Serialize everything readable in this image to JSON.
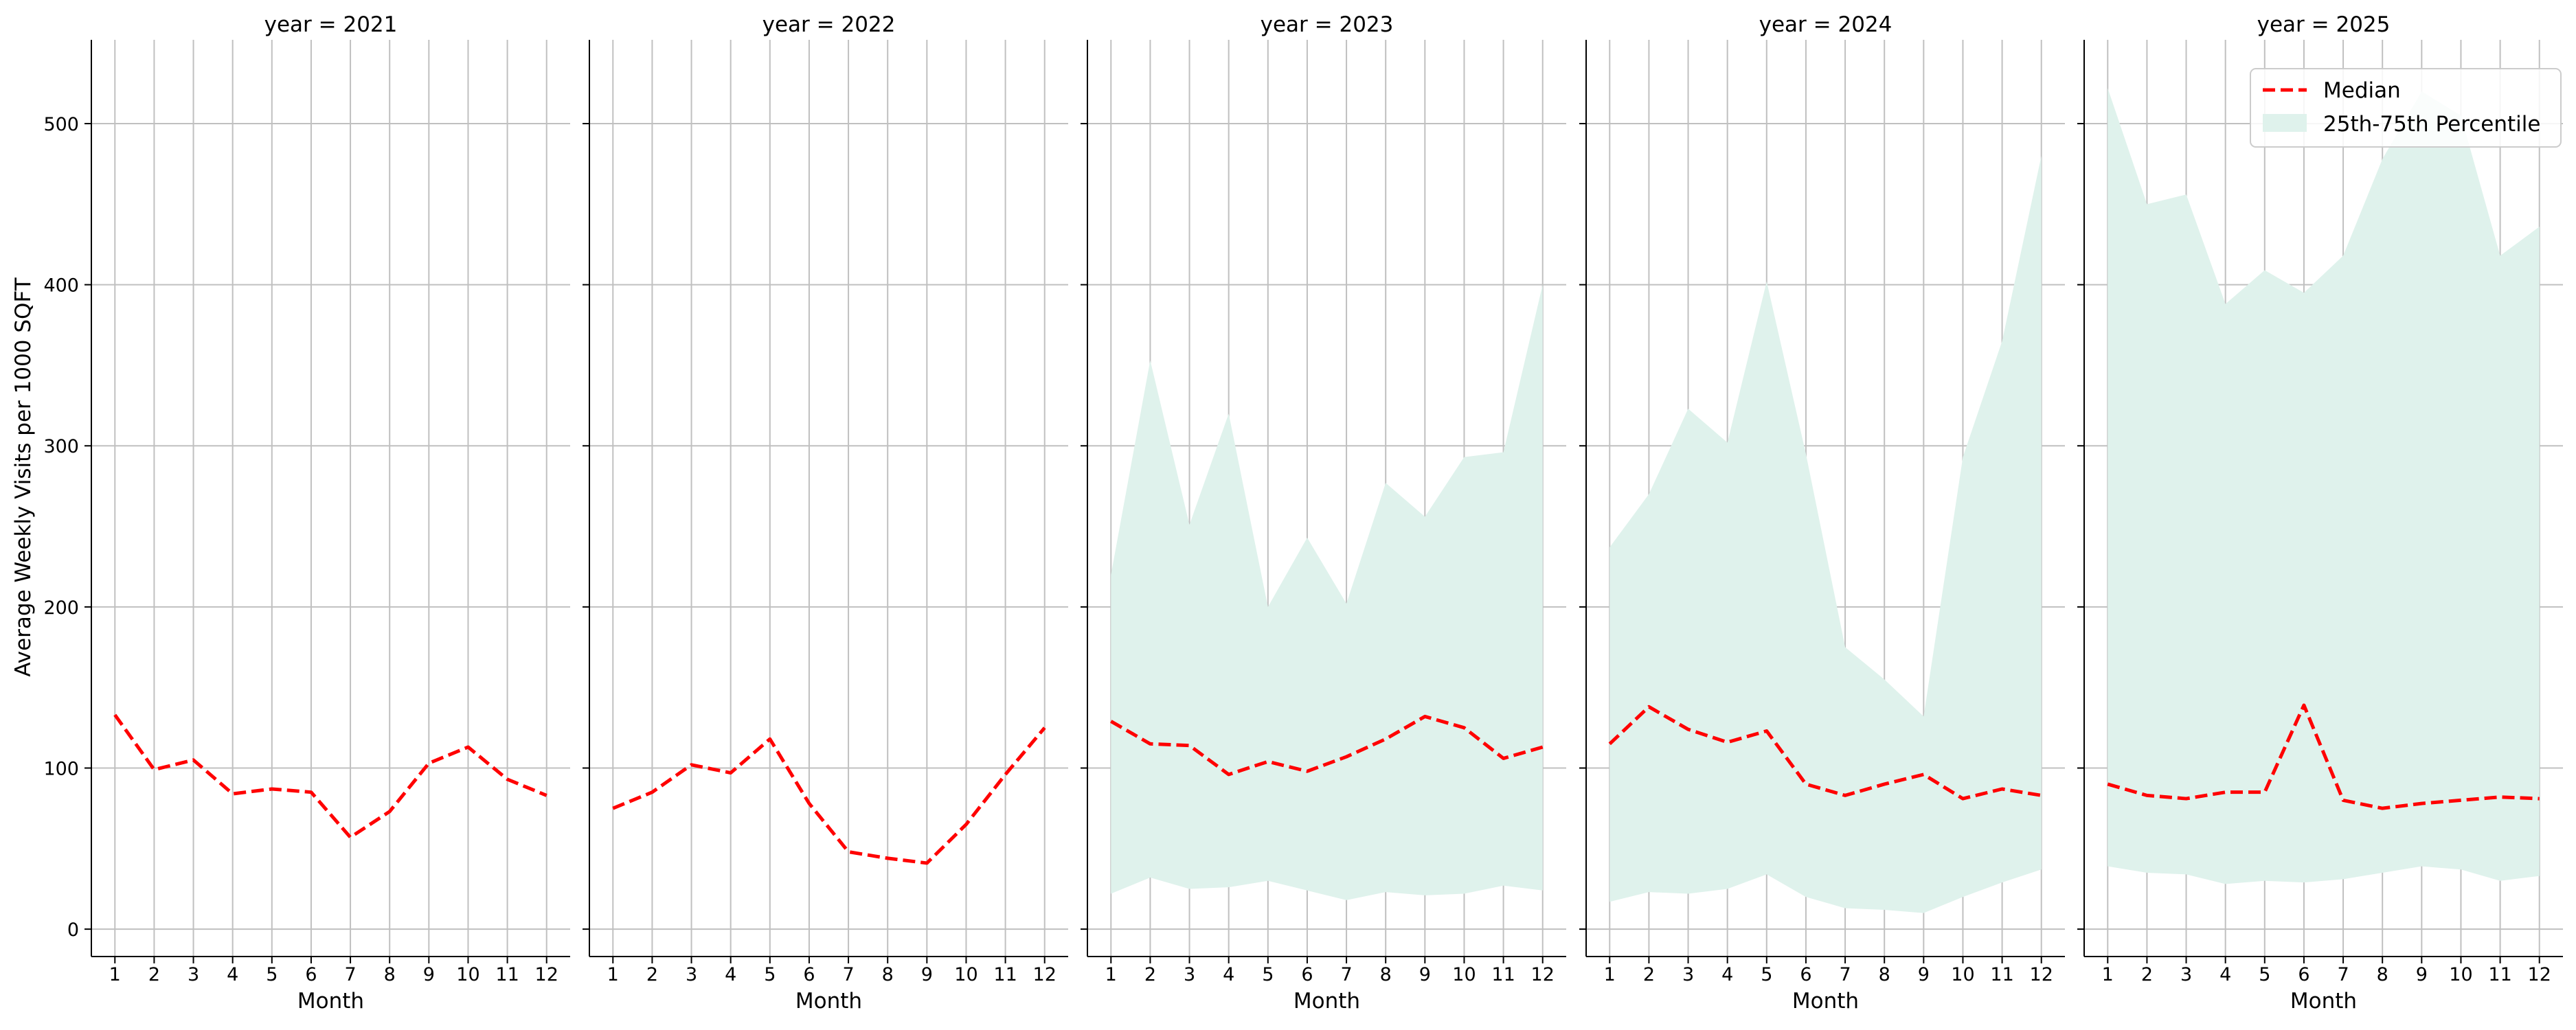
{
  "figure": {
    "ylabel": "Average Weekly Visits per 1000 SQFT",
    "legend": {
      "placement": "top-right",
      "median_label": "Median",
      "band_label": "25th-75th Percentile"
    }
  },
  "colors": {
    "median": "#ff0000",
    "band": "#dff2ec",
    "grid": "#c0c0c0",
    "axis": "#000000"
  },
  "chart_data": [
    {
      "type": "line",
      "title": "year = 2021",
      "xlabel": "Month",
      "x": [
        1,
        2,
        3,
        4,
        5,
        6,
        7,
        8,
        9,
        10,
        11,
        12
      ],
      "xlim": [
        0.4,
        12.6
      ],
      "ylim": [
        -17,
        552
      ],
      "yticks": [
        0,
        100,
        200,
        300,
        400,
        500
      ],
      "grid": true,
      "series": [
        {
          "name": "Median",
          "kind": "line",
          "values": [
            133,
            99,
            105,
            84,
            87,
            85,
            57,
            73,
            103,
            113,
            93,
            83
          ]
        }
      ]
    },
    {
      "type": "line",
      "title": "year = 2022",
      "xlabel": "Month",
      "x": [
        1,
        2,
        3,
        4,
        5,
        6,
        7,
        8,
        9,
        10,
        11,
        12
      ],
      "xlim": [
        0.4,
        12.6
      ],
      "ylim": [
        -17,
        552
      ],
      "yticks": [
        0,
        100,
        200,
        300,
        400,
        500
      ],
      "grid": true,
      "series": [
        {
          "name": "Median",
          "kind": "line",
          "values": [
            75,
            85,
            102,
            97,
            118,
            78,
            48,
            44,
            41,
            65,
            96,
            125
          ]
        }
      ]
    },
    {
      "type": "area",
      "title": "year = 2023",
      "xlabel": "Month",
      "x": [
        1,
        2,
        3,
        4,
        5,
        6,
        7,
        8,
        9,
        10,
        11,
        12
      ],
      "xlim": [
        0.4,
        12.6
      ],
      "ylim": [
        -17,
        552
      ],
      "yticks": [
        0,
        100,
        200,
        300,
        400,
        500
      ],
      "grid": true,
      "series": [
        {
          "name": "Median",
          "kind": "line",
          "values": [
            129,
            115,
            114,
            96,
            104,
            98,
            107,
            118,
            132,
            125,
            106,
            113
          ]
        },
        {
          "name": "25th-75th Percentile",
          "kind": "band",
          "low": [
            22,
            32,
            25,
            26,
            30,
            24,
            18,
            23,
            21,
            22,
            27,
            24
          ],
          "high": [
            220,
            353,
            251,
            320,
            200,
            243,
            202,
            277,
            256,
            293,
            296,
            400
          ]
        }
      ]
    },
    {
      "type": "area",
      "title": "year = 2024",
      "xlabel": "Month",
      "x": [
        1,
        2,
        3,
        4,
        5,
        6,
        7,
        8,
        9,
        10,
        11,
        12
      ],
      "xlim": [
        0.4,
        12.6
      ],
      "ylim": [
        -17,
        552
      ],
      "yticks": [
        0,
        100,
        200,
        300,
        400,
        500
      ],
      "grid": true,
      "series": [
        {
          "name": "Median",
          "kind": "line",
          "values": [
            115,
            138,
            124,
            116,
            123,
            90,
            83,
            90,
            96,
            81,
            87,
            83
          ]
        },
        {
          "name": "25th-75th Percentile",
          "kind": "band",
          "low": [
            17,
            23,
            22,
            25,
            34,
            20,
            13,
            12,
            10,
            20,
            29,
            37
          ],
          "high": [
            237,
            270,
            323,
            302,
            402,
            295,
            175,
            155,
            132,
            293,
            365,
            480
          ]
        }
      ]
    },
    {
      "type": "area",
      "title": "year = 2025",
      "xlabel": "Month",
      "x": [
        1,
        2,
        3,
        4,
        5,
        6,
        7,
        8,
        9,
        10,
        11,
        12
      ],
      "xlim": [
        0.4,
        12.6
      ],
      "ylim": [
        -17,
        552
      ],
      "yticks": [
        0,
        100,
        200,
        300,
        400,
        500
      ],
      "grid": true,
      "series": [
        {
          "name": "Median",
          "kind": "line",
          "values": [
            90,
            83,
            81,
            85,
            85,
            139,
            80,
            75,
            78,
            80,
            82,
            81
          ]
        },
        {
          "name": "25th-75th Percentile",
          "kind": "band",
          "low": [
            39,
            35,
            34,
            28,
            30,
            29,
            31,
            35,
            39,
            37,
            30,
            33
          ],
          "high": [
            522,
            450,
            456,
            388,
            409,
            395,
            418,
            478,
            520,
            505,
            418,
            436
          ]
        }
      ]
    }
  ]
}
